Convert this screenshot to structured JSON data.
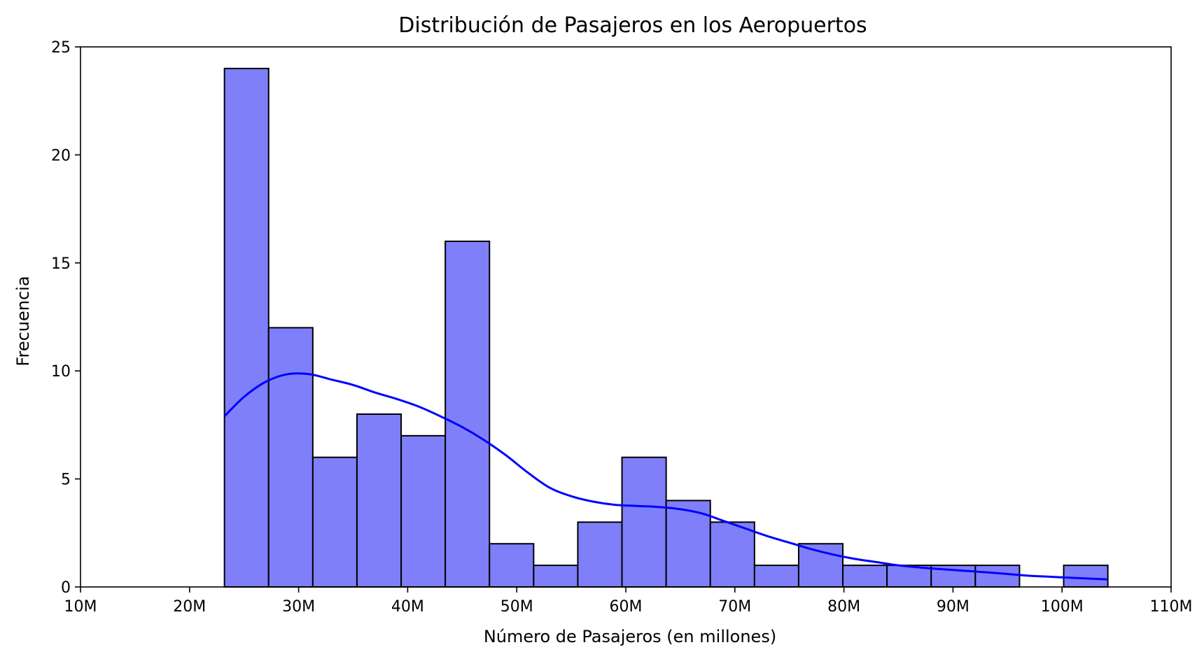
{
  "chart_data": {
    "type": "bar",
    "title": "Distribución de Pasajeros en los Aeropuertos",
    "xlabel": "Número de Pasajeros (en millones)",
    "ylabel": "Frecuencia",
    "xlim": [
      10,
      110
    ],
    "ylim": [
      0,
      25
    ],
    "x_ticks": [
      10,
      20,
      30,
      40,
      50,
      60,
      70,
      80,
      90,
      100,
      110
    ],
    "x_tick_labels": [
      "10M",
      "20M",
      "30M",
      "40M",
      "50M",
      "60M",
      "70M",
      "80M",
      "90M",
      "100M",
      "110M"
    ],
    "y_ticks": [
      0,
      5,
      10,
      15,
      20,
      25
    ],
    "y_tick_labels": [
      "0",
      "5",
      "10",
      "15",
      "20",
      "25"
    ],
    "bin_edges": [
      23.2,
      27.25,
      31.3,
      35.35,
      39.4,
      43.45,
      47.5,
      51.55,
      55.6,
      59.65,
      63.7,
      67.75,
      71.8,
      75.85,
      79.9,
      83.95,
      88.0,
      92.05,
      96.1,
      100.15,
      104.2
    ],
    "values": [
      24,
      12,
      6,
      8,
      7,
      16,
      2,
      1,
      3,
      6,
      4,
      3,
      1,
      2,
      1,
      1,
      1,
      1,
      0,
      1
    ],
    "kde": {
      "x": [
        23.2,
        25,
        27,
        29,
        31,
        33,
        35,
        37,
        39,
        41,
        43,
        45,
        47,
        49,
        51,
        53,
        55,
        57,
        59,
        61,
        63,
        65,
        67,
        69,
        71,
        73,
        75,
        77,
        79,
        81,
        83,
        85,
        87,
        89,
        91,
        93,
        95,
        97,
        99,
        101,
        104.2
      ],
      "y": [
        7.9,
        8.8,
        9.5,
        9.85,
        9.85,
        9.6,
        9.35,
        9.0,
        8.7,
        8.35,
        7.9,
        7.4,
        6.8,
        6.1,
        5.3,
        4.6,
        4.2,
        3.95,
        3.8,
        3.75,
        3.7,
        3.6,
        3.4,
        3.05,
        2.7,
        2.35,
        2.05,
        1.75,
        1.5,
        1.3,
        1.15,
        1.0,
        0.9,
        0.82,
        0.75,
        0.68,
        0.6,
        0.52,
        0.47,
        0.42,
        0.35
      ]
    },
    "grid": false,
    "colors": {
      "bar_fill": "#7f7ff9",
      "bar_edge": "#000000",
      "kde_line": "#0000ff"
    }
  }
}
